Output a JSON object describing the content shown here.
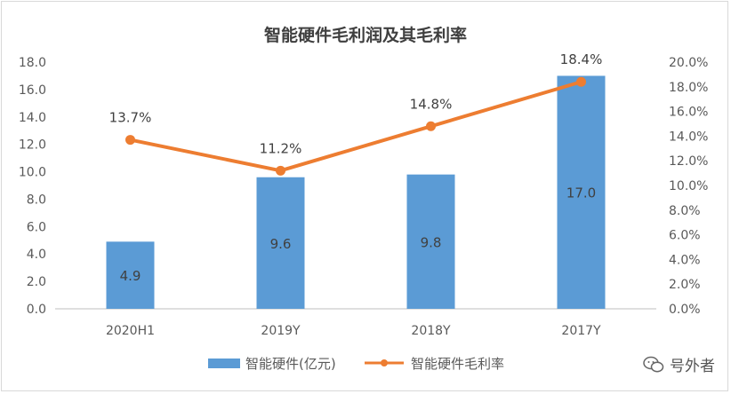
{
  "chart_data": {
    "type": "bar",
    "title": "智能硬件毛利润及其毛利率",
    "categories": [
      "2020H1",
      "2019Y",
      "2018Y",
      "2017Y"
    ],
    "series": [
      {
        "name": "智能硬件(亿元)",
        "type": "bar",
        "axis": "left",
        "values": [
          4.9,
          9.6,
          9.8,
          17.0
        ],
        "labels": [
          "4.9",
          "9.6",
          "9.8",
          "17.0"
        ],
        "color": "#5b9bd5"
      },
      {
        "name": "智能硬件毛利率",
        "type": "line",
        "axis": "right",
        "values": [
          13.7,
          11.2,
          14.8,
          18.4
        ],
        "labels": [
          "13.7%",
          "11.2%",
          "14.8%",
          "18.4%"
        ],
        "color": "#ed7d31"
      }
    ],
    "y_left": {
      "min": 0,
      "max": 18,
      "step": 2,
      "ticks": [
        "0.0",
        "2.0",
        "4.0",
        "6.0",
        "8.0",
        "10.0",
        "12.0",
        "14.0",
        "16.0",
        "18.0"
      ]
    },
    "y_right": {
      "min": 0,
      "max": 20,
      "step": 2,
      "ticks": [
        "0.0%",
        "2.0%",
        "4.0%",
        "6.0%",
        "8.0%",
        "10.0%",
        "12.0%",
        "14.0%",
        "16.0%",
        "18.0%",
        "20.0%"
      ]
    },
    "legend_position": "bottom"
  },
  "watermark": {
    "text": "号外者",
    "icon": "wechat-icon"
  }
}
